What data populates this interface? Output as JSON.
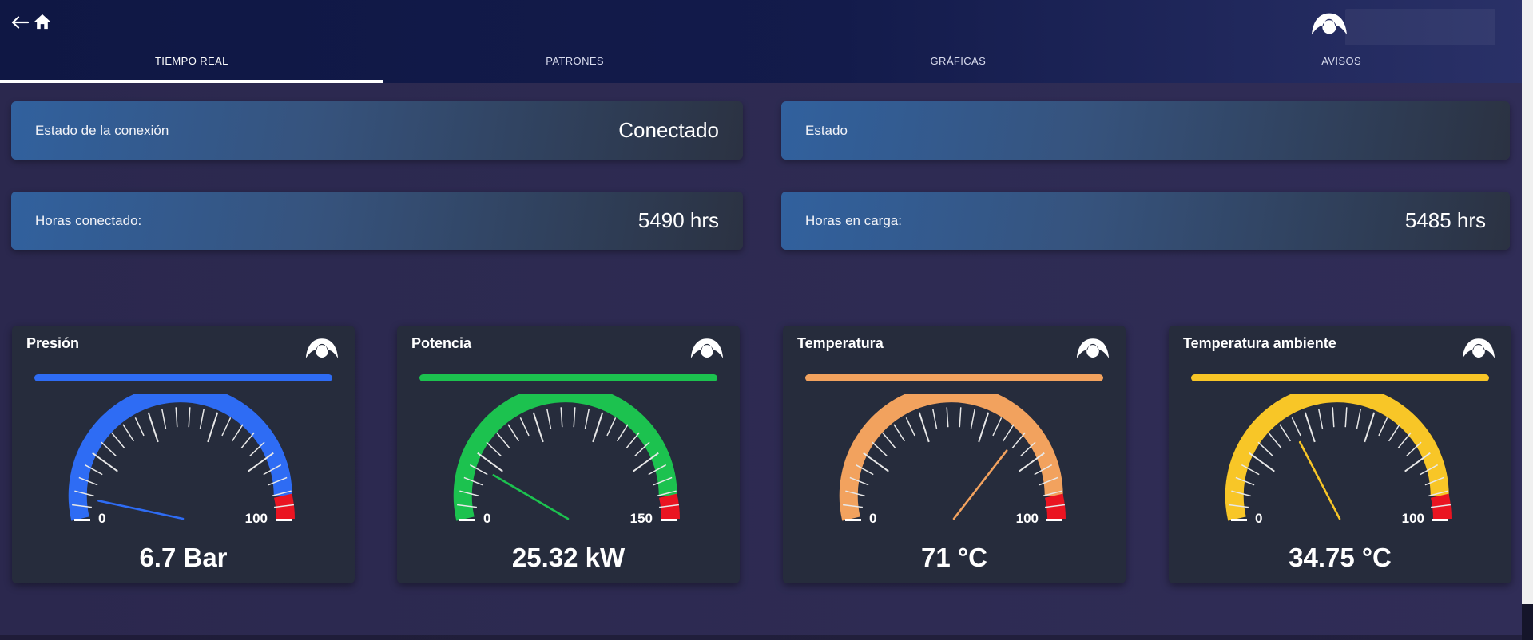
{
  "topbar": {
    "tabs": [
      {
        "label": "TIEMPO REAL",
        "active": true
      },
      {
        "label": "PATRONES",
        "active": false
      },
      {
        "label": "GRÁFICAS",
        "active": false
      },
      {
        "label": "AVISOS",
        "active": false
      }
    ]
  },
  "status_cards": {
    "row1": [
      {
        "label": "Estado de la conexión",
        "value": "Conectado"
      },
      {
        "label": "Estado",
        "value": ""
      }
    ],
    "row2": [
      {
        "label": "Horas conectado:",
        "value": "5490 hrs"
      },
      {
        "label": "Horas en carga:",
        "value": "5485 hrs"
      }
    ]
  },
  "gauge_defaults": {
    "tick_segments": 25,
    "red_zone_start": 0.928
  },
  "gauges": [
    {
      "title": "Presión",
      "value": 6.7,
      "min": 0,
      "max": 100,
      "min_label": "0",
      "max_label": "100",
      "value_label": "6.7 Bar",
      "color": "#2e6cf4"
    },
    {
      "title": "Potencia",
      "value": 25.32,
      "min": 0,
      "max": 150,
      "min_label": "0",
      "max_label": "150",
      "value_label": "25.32 kW",
      "color": "#1cc24f"
    },
    {
      "title": "Temperatura",
      "value": 71,
      "min": 0,
      "max": 100,
      "min_label": "0",
      "max_label": "100",
      "value_label": "71 °C",
      "color": "#f2a25e"
    },
    {
      "title": "Temperatura ambiente",
      "value": 34.75,
      "min": 0,
      "max": 100,
      "min_label": "0",
      "max_label": "100",
      "value_label": "34.75 °C",
      "color": "#f8c627"
    }
  ],
  "colors": {
    "red_zone": "#ea1421",
    "tick": "#e8e8e8",
    "status_gradient_start": "#31619e",
    "status_gradient_end": "#2b3242",
    "topbar_start": "#0f1744",
    "topbar_end": "#2a3168",
    "gauge_card_bg": "#262c3c"
  }
}
